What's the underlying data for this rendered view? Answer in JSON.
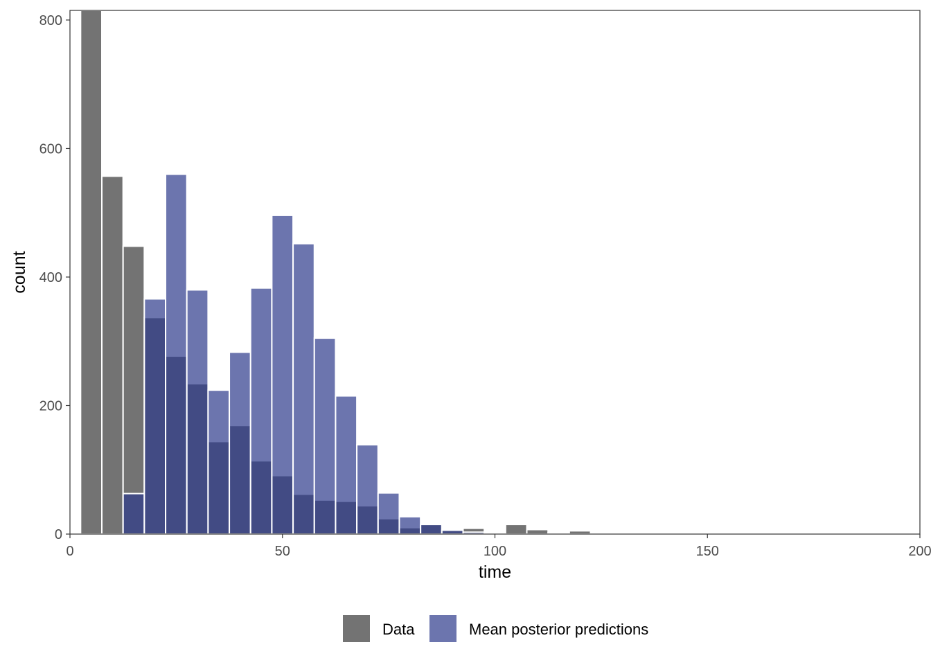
{
  "chart_data": {
    "type": "bar",
    "xlabel": "time",
    "ylabel": "count",
    "xlim": [
      0,
      200
    ],
    "ylim": [
      0,
      815
    ],
    "x_ticks": [
      "0",
      "50",
      "100",
      "150",
      "200"
    ],
    "y_ticks": [
      "0",
      "200",
      "400",
      "600",
      "800"
    ],
    "grid": false,
    "legend_position": "bottom",
    "bin_width": 5,
    "series": [
      {
        "name": "Data",
        "color": "#737373",
        "bins": [
          {
            "x": 5,
            "value": 815
          },
          {
            "x": 10,
            "value": 557
          },
          {
            "x": 15,
            "value": 448
          },
          {
            "x": 20,
            "value": 337
          },
          {
            "x": 25,
            "value": 277
          },
          {
            "x": 30,
            "value": 234
          },
          {
            "x": 35,
            "value": 144
          },
          {
            "x": 40,
            "value": 169
          },
          {
            "x": 45,
            "value": 114
          },
          {
            "x": 50,
            "value": 91
          },
          {
            "x": 55,
            "value": 62
          },
          {
            "x": 60,
            "value": 53
          },
          {
            "x": 65,
            "value": 51
          },
          {
            "x": 70,
            "value": 44
          },
          {
            "x": 75,
            "value": 24
          },
          {
            "x": 80,
            "value": 10
          },
          {
            "x": 85,
            "value": 15
          },
          {
            "x": 90,
            "value": 6
          },
          {
            "x": 95,
            "value": 9
          },
          {
            "x": 100,
            "value": 1
          },
          {
            "x": 105,
            "value": 15
          },
          {
            "x": 110,
            "value": 7
          },
          {
            "x": 115,
            "value": 2
          },
          {
            "x": 120,
            "value": 5
          }
        ]
      },
      {
        "name": "Mean posterior predictions",
        "color": "#2d3a8c",
        "opacity": 0.7,
        "bins": [
          {
            "x": 15,
            "value": 63
          },
          {
            "x": 20,
            "value": 366
          },
          {
            "x": 25,
            "value": 560
          },
          {
            "x": 30,
            "value": 380
          },
          {
            "x": 35,
            "value": 224
          },
          {
            "x": 40,
            "value": 283
          },
          {
            "x": 45,
            "value": 383
          },
          {
            "x": 50,
            "value": 496
          },
          {
            "x": 55,
            "value": 452
          },
          {
            "x": 60,
            "value": 305
          },
          {
            "x": 65,
            "value": 215
          },
          {
            "x": 70,
            "value": 139
          },
          {
            "x": 75,
            "value": 64
          },
          {
            "x": 80,
            "value": 27
          },
          {
            "x": 85,
            "value": 15
          },
          {
            "x": 90,
            "value": 6
          },
          {
            "x": 95,
            "value": 3
          },
          {
            "x": 100,
            "value": 1
          }
        ]
      }
    ]
  }
}
